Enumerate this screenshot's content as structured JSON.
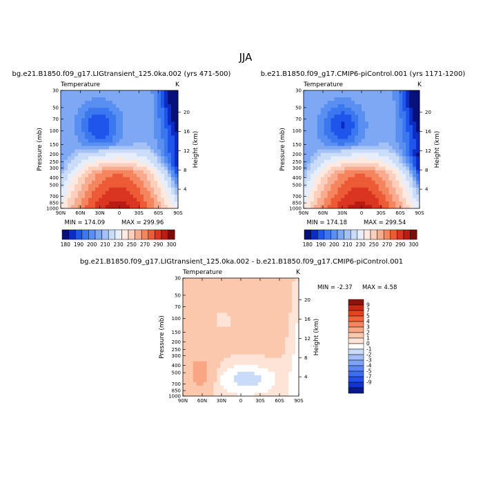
{
  "figure": {
    "season": "JJA"
  },
  "colors": {
    "abs_scale": [
      "#08107a",
      "#0c2dc4",
      "#1f55ea",
      "#3b78f0",
      "#5a8ff2",
      "#7ea8f3",
      "#a4c2f6",
      "#cadcf8",
      "#e7eefb",
      "#fde9df",
      "#fbcfbb",
      "#f8ab8f",
      "#f4855f",
      "#ec5a36",
      "#d93520",
      "#b81c12",
      "#7b0d08"
    ],
    "diff_scale": [
      "#0a1a8a",
      "#1233cc",
      "#2250e8",
      "#3e6df0",
      "#5b87f3",
      "#7ea2f4",
      "#a3bff7",
      "#c9dbf9",
      "#ffffff",
      "#fde4d6",
      "#fbc8ad",
      "#f8a683",
      "#f5855e",
      "#ef6439",
      "#e2441f",
      "#c52a12",
      "#8e1309"
    ]
  },
  "chart_data": [
    {
      "type": "heatmap",
      "panel_title": "bg.e21.B1850.f09_g17.LIGtransient_125.0ka.002 (yrs 471-500)",
      "variable": "Temperature",
      "units": "K",
      "ylabel": "Pressure (mb)",
      "ylabel_right": "Height (km)",
      "x_ticks": [
        "90N",
        "60N",
        "30N",
        "0",
        "30S",
        "60S",
        "90S"
      ],
      "y_ticks": [
        "30",
        "50",
        "70",
        "100",
        "150",
        "200",
        "250",
        "300",
        "400",
        "500",
        "700",
        "850",
        "1000"
      ],
      "y_ticks_right": [
        "20",
        "16",
        "12",
        "8",
        "4"
      ],
      "min_label": "MIN = 174.09",
      "max_label": "MAX = 299.96",
      "min": 174.09,
      "max": 299.96
    },
    {
      "type": "heatmap",
      "panel_title": "b.e21.B1850.f09_g17.CMIP6-piControl.001 (yrs 1171-1200)",
      "variable": "Temperature",
      "units": "K",
      "ylabel": "Pressure (mb)",
      "ylabel_right": "Height (km)",
      "x_ticks": [
        "90N",
        "60N",
        "30N",
        "0",
        "30S",
        "60S",
        "90S"
      ],
      "y_ticks": [
        "30",
        "50",
        "70",
        "100",
        "150",
        "200",
        "250",
        "300",
        "400",
        "500",
        "700",
        "850",
        "1000"
      ],
      "y_ticks_right": [
        "20",
        "16",
        "12",
        "8",
        "4"
      ],
      "min_label": "MIN = 174.18",
      "max_label": "MAX = 299.54",
      "min": 174.18,
      "max": 299.54
    },
    {
      "type": "heatmap",
      "panel_title": "bg.e21.B1850.f09_g17.LIGtransient_125.0ka.002 - b.e21.B1850.f09_g17.CMIP6-piControl.001",
      "variable": "Temperature",
      "units": "K",
      "ylabel": "Pressure (mb)",
      "ylabel_right": "Height (km)",
      "x_ticks": [
        "90N",
        "60N",
        "30N",
        "0",
        "30S",
        "60S",
        "90S"
      ],
      "y_ticks": [
        "30",
        "50",
        "70",
        "100",
        "150",
        "200",
        "250",
        "300",
        "400",
        "500",
        "700",
        "850",
        "1000"
      ],
      "y_ticks_right": [
        "20",
        "16",
        "12",
        "8",
        "4"
      ],
      "min_label": "MIN = -2.37",
      "max_label": "MAX = 4.58",
      "min": -2.37,
      "max": 4.58
    }
  ],
  "colorbar_abs": {
    "labels": [
      "180",
      "190",
      "200",
      "210",
      "230",
      "250",
      "270",
      "290",
      "300"
    ]
  },
  "colorbar_diff": {
    "labels": [
      "9",
      "7",
      "5",
      "4",
      "3",
      "2",
      "1",
      "0",
      "-1",
      "-2",
      "-3",
      "-4",
      "-5",
      "-7",
      "-9"
    ]
  }
}
